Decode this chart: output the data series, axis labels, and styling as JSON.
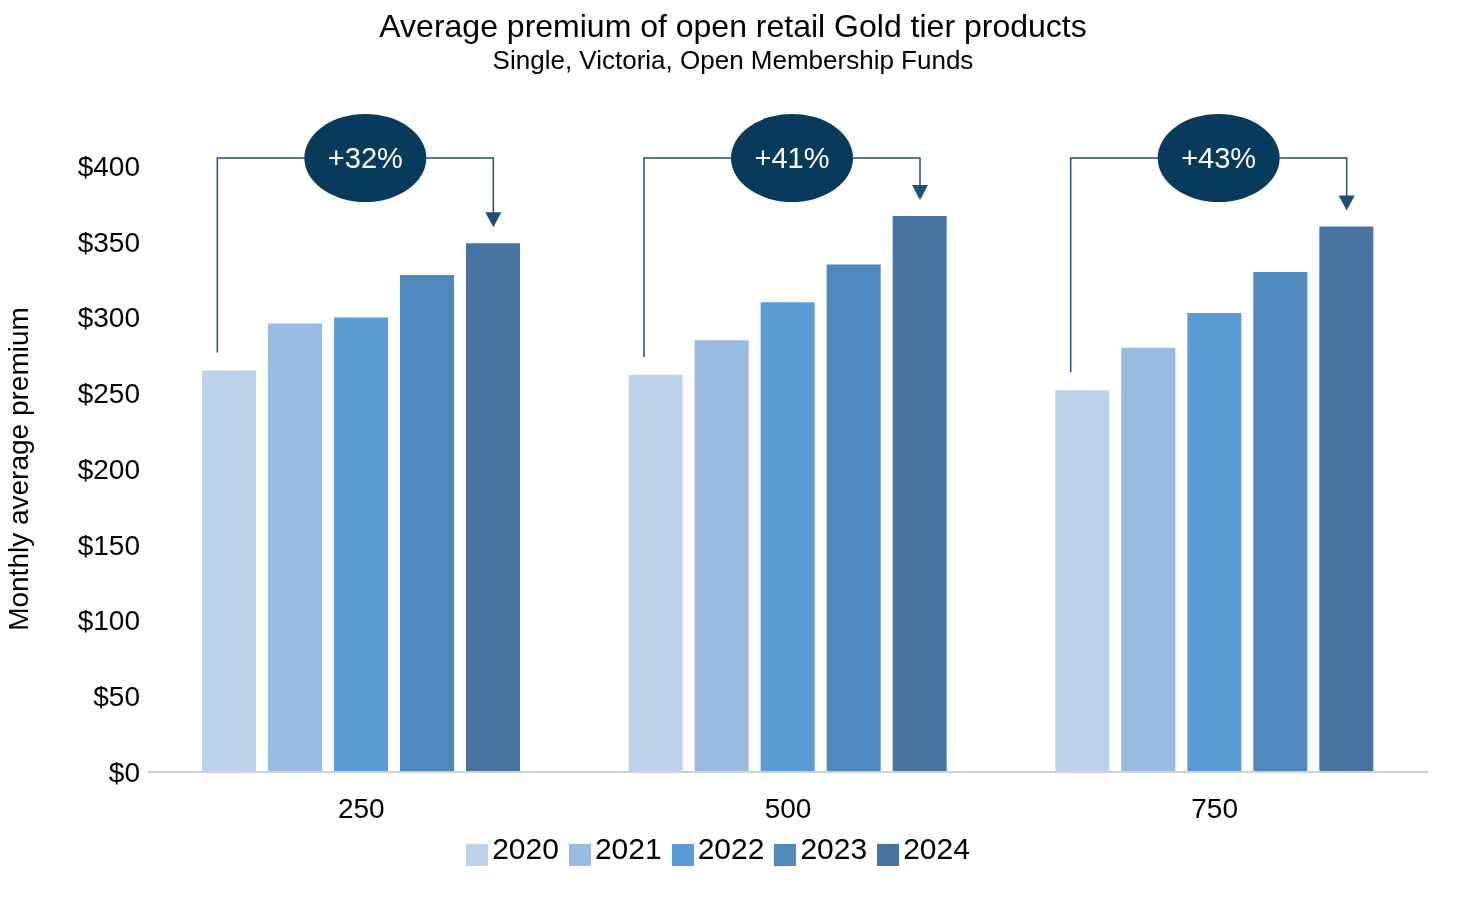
{
  "chart_data": {
    "type": "bar",
    "title": "Average premium of open retail Gold tier products",
    "subtitle": "Single, Victoria, Open Membership Funds",
    "ylabel": "Monthly average premium",
    "categories": [
      "250",
      "500",
      "750"
    ],
    "series": [
      {
        "name": "2020",
        "color": "#bdd1ea",
        "values": [
          265,
          262,
          252
        ]
      },
      {
        "name": "2021",
        "color": "#98b9e0",
        "values": [
          296,
          285,
          280
        ]
      },
      {
        "name": "2022",
        "color": "#5b9bd5",
        "values": [
          300,
          310,
          303
        ]
      },
      {
        "name": "2023",
        "color": "#4e88bd",
        "values": [
          328,
          335,
          330
        ]
      },
      {
        "name": "2024",
        "color": "#44749f",
        "values": [
          349,
          367,
          360
        ]
      }
    ],
    "ylim": [
      0,
      400
    ],
    "yticks": [
      {
        "value": 0,
        "label": "$0"
      },
      {
        "value": 50,
        "label": "$50"
      },
      {
        "value": 100,
        "label": "$100"
      },
      {
        "value": 150,
        "label": "$150"
      },
      {
        "value": 200,
        "label": "$200"
      },
      {
        "value": 250,
        "label": "$250"
      },
      {
        "value": 300,
        "label": "$300"
      },
      {
        "value": 350,
        "label": "$350"
      },
      {
        "value": 400,
        "label": "$400"
      }
    ],
    "grid": false,
    "legend": "bottom",
    "annotations": [
      "+32%",
      "+41%",
      "+43%"
    ]
  }
}
